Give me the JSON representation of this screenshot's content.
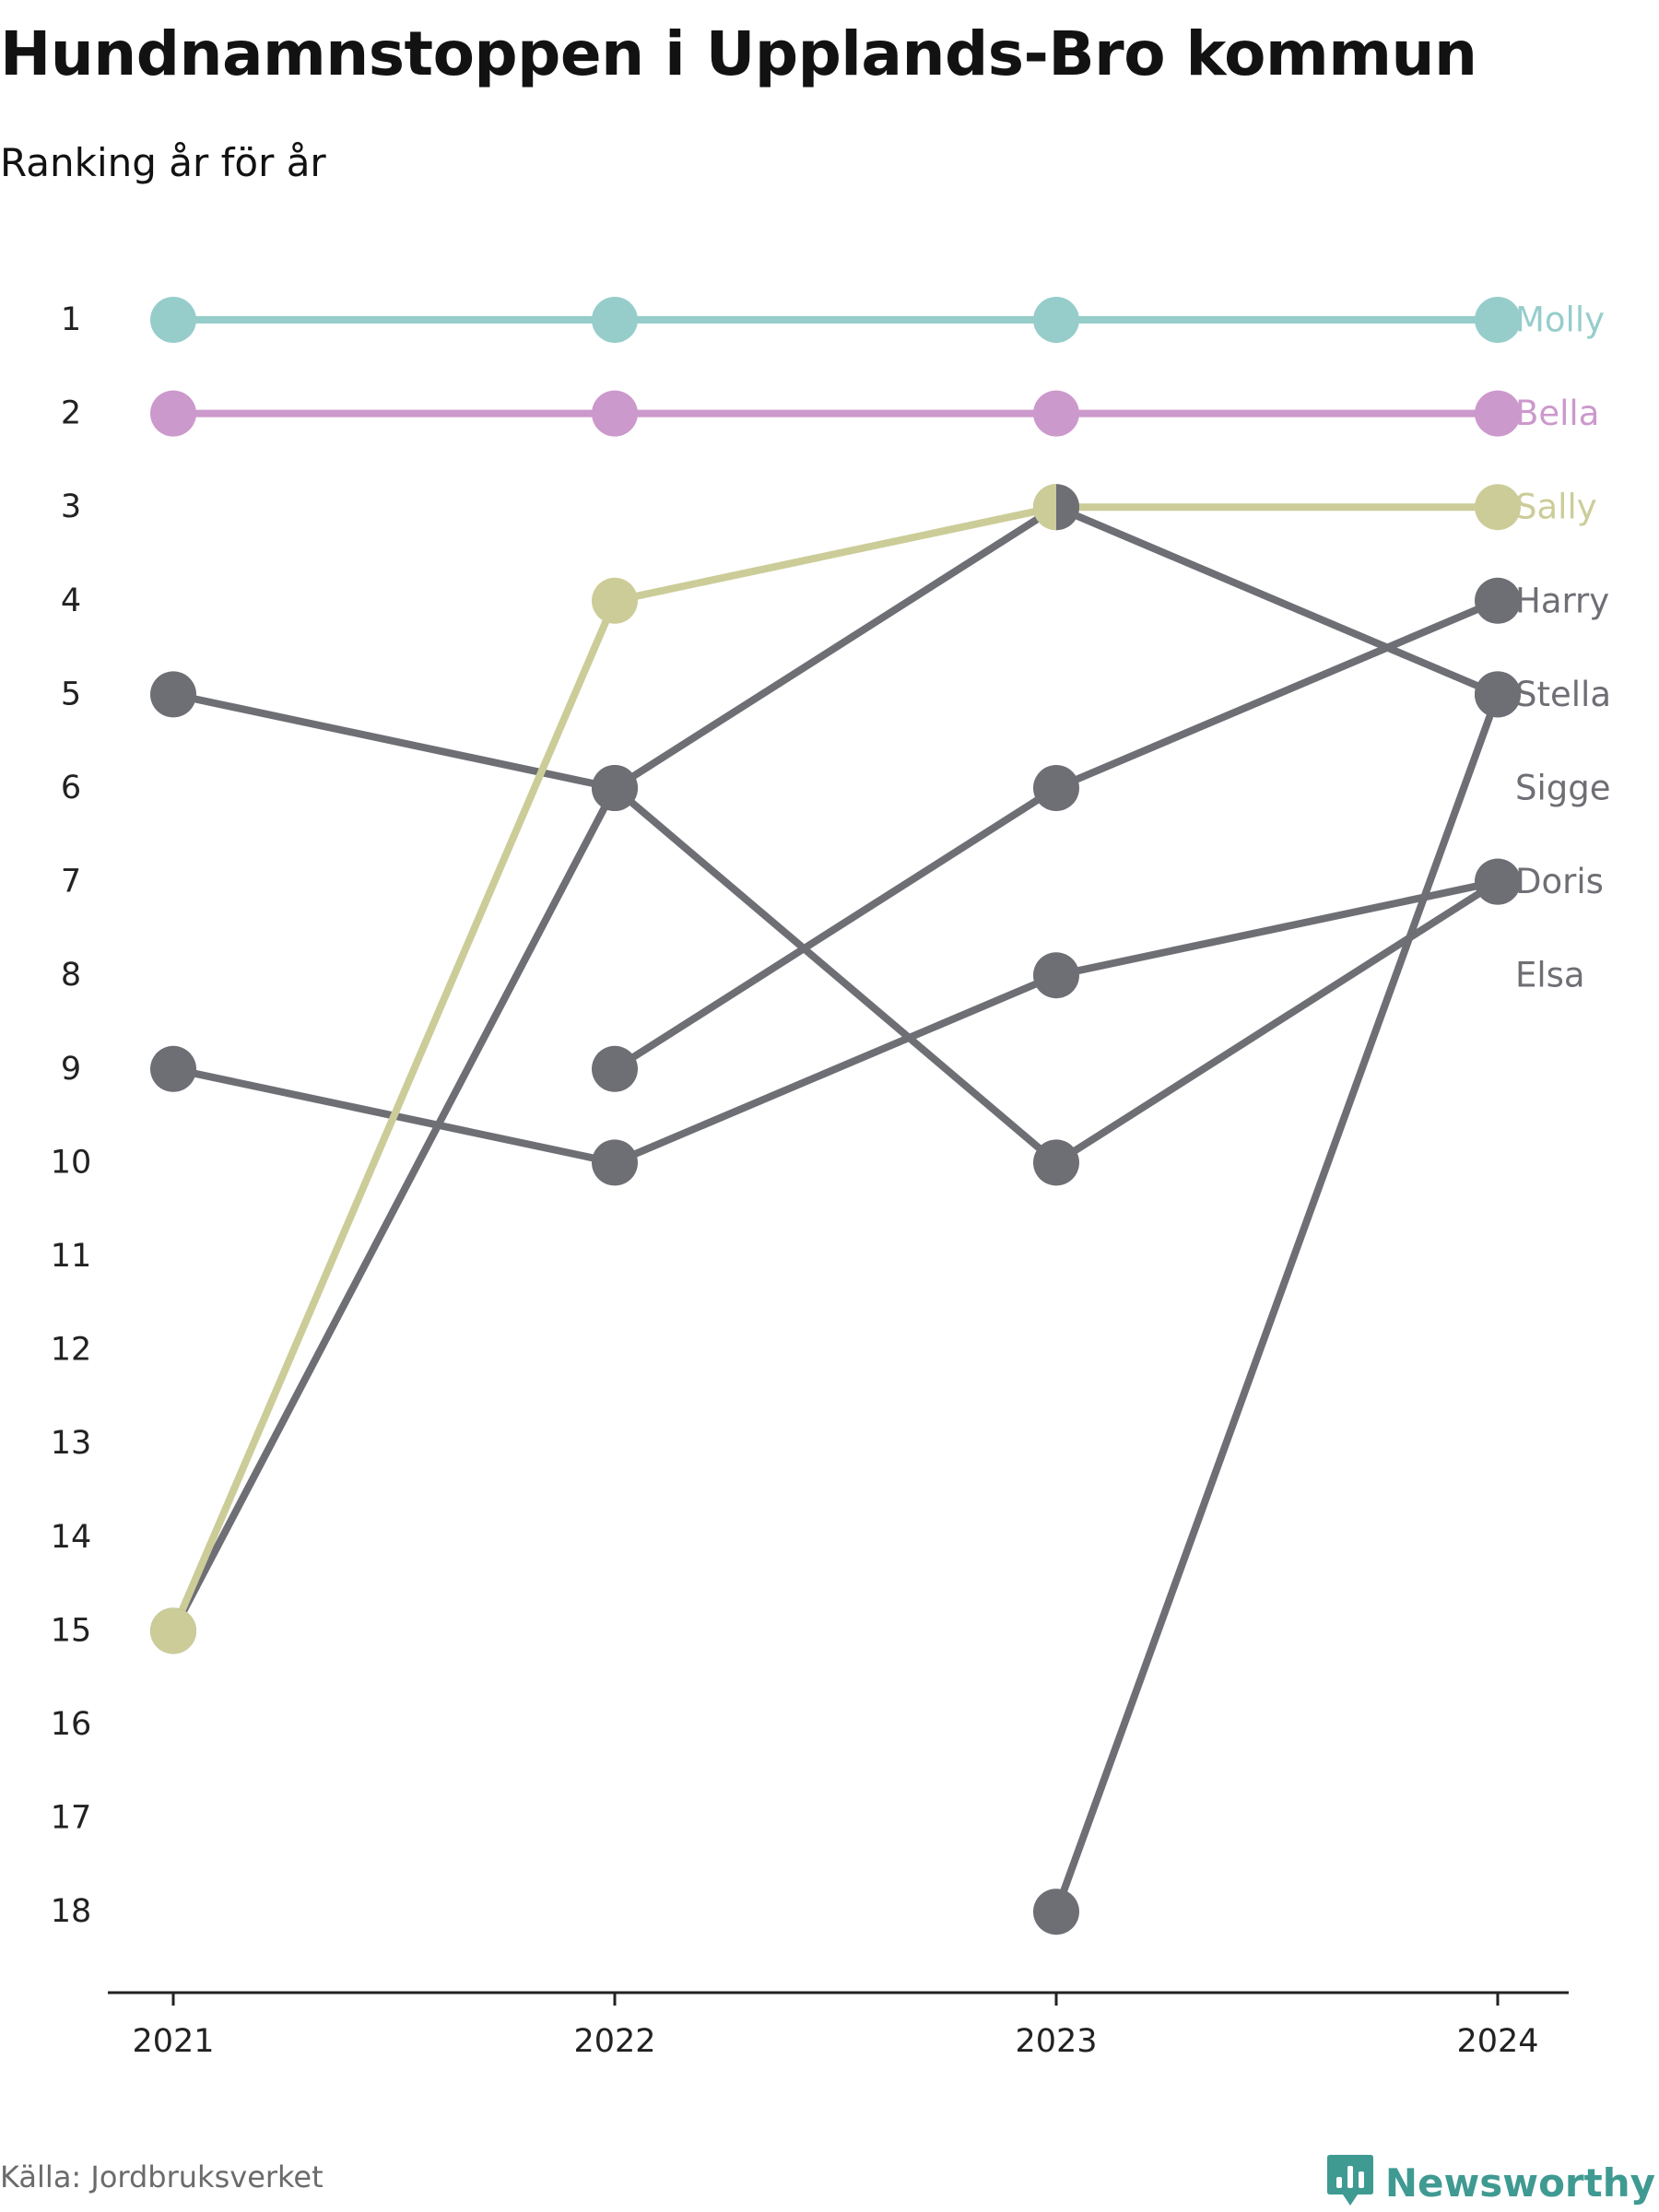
{
  "header": {
    "title": "Hundnamnstoppen i Upplands-Bro kommun",
    "subtitle": "Ranking år för år"
  },
  "footer": {
    "source": "Källa: Jordbruksverket",
    "brand": "Newsworthy",
    "brand_icon": "newsworthy-logo-icon"
  },
  "colors": {
    "molly": "#96cdcb",
    "bella": "#cc99cc",
    "sally": "#cccc99",
    "other": "#6e6e75",
    "axis": "#222222",
    "tick_text": "#222222",
    "brand": "#3f9a92"
  },
  "chart_data": {
    "type": "line",
    "title": "Hundnamnstoppen i Upplands-Bro kommun",
    "subtitle": "Ranking år för år",
    "x": [
      "2021",
      "2022",
      "2023",
      "2024"
    ],
    "y_ticks": [
      "1",
      "2",
      "3",
      "4",
      "5",
      "6",
      "7",
      "8",
      "9",
      "10",
      "11",
      "12",
      "13",
      "14",
      "15",
      "16",
      "17",
      "18"
    ],
    "ylim": [
      1,
      18
    ],
    "y_inverted": true,
    "xlabel": "",
    "ylabel": "",
    "grid": false,
    "legend": "direct labels at right end",
    "series": [
      {
        "name": "Molly",
        "color": "#96cdcb",
        "values": [
          1,
          1,
          1,
          1
        ]
      },
      {
        "name": "Bella",
        "color": "#cc99cc",
        "values": [
          2,
          2,
          2,
          2
        ]
      },
      {
        "name": "Sally",
        "color": "#cccc99",
        "values": [
          15,
          4,
          3,
          3
        ]
      },
      {
        "name": "Harry",
        "color": "#6e6e75",
        "values": [
          null,
          9,
          6,
          4
        ]
      },
      {
        "name": "Stella",
        "color": "#6e6e75",
        "values": [
          null,
          null,
          18,
          5
        ]
      },
      {
        "name": "Sigge",
        "color": "#6e6e75",
        "values": [
          15,
          6,
          3,
          5
        ]
      },
      {
        "name": "Doris",
        "color": "#6e6e75",
        "values": [
          9,
          10,
          8,
          7
        ]
      },
      {
        "name": "Elsa",
        "color": "#6e6e75",
        "values": [
          5,
          6,
          10,
          7
        ]
      }
    ]
  }
}
